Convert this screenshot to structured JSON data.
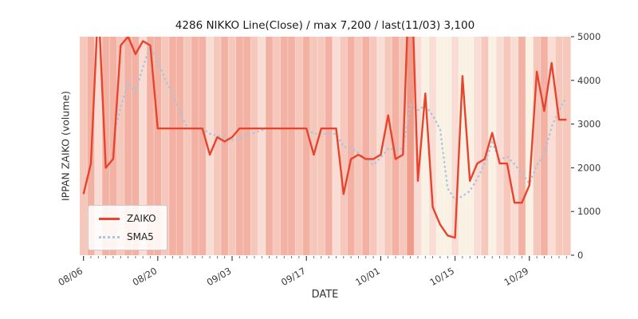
{
  "figure": {
    "title": "4286 NIKKO Line(Close) / max 7,200 / last(11/03) 3,100",
    "xlabel": "DATE",
    "ylabel": "IPPAN ZAIKO (volume)"
  },
  "chart_data": {
    "type": "line",
    "title": "4286 NIKKO Line(Close) / max 7,200 / last(11/03) 3,100",
    "xlabel": "DATE",
    "ylabel": "IPPAN ZAIKO (volume)",
    "ylim": [
      0,
      5000
    ],
    "y_ticks": [
      0,
      1000,
      2000,
      3000,
      4000,
      5000
    ],
    "x_tick_labels": [
      "08/06",
      "08/20",
      "09/03",
      "09/17",
      "10/01",
      "10/15",
      "10/29"
    ],
    "x_tick_positions": [
      0,
      10,
      20,
      30,
      40,
      50,
      60
    ],
    "legend_position": "lower-left",
    "grid": false,
    "series": [
      {
        "name": "ZAIKO",
        "style": "solid",
        "color": "#e8432c",
        "values": [
          1400,
          2100,
          5800,
          2000,
          2200,
          4800,
          5000,
          4600,
          4900,
          4800,
          2900,
          2900,
          2900,
          2900,
          2900,
          2900,
          2900,
          2300,
          2700,
          2600,
          2700,
          2900,
          2900,
          2900,
          2900,
          2900,
          2900,
          2900,
          2900,
          2900,
          2900,
          2300,
          2900,
          2900,
          2900,
          1400,
          2200,
          2300,
          2200,
          2200,
          2300,
          3200,
          2200,
          2300,
          7200,
          1700,
          3700,
          1100,
          700,
          450,
          400,
          4100,
          1700,
          2100,
          2200,
          2800,
          2100,
          2100,
          1200,
          1200,
          1600,
          4200,
          3300,
          4400,
          3100,
          3100
        ]
      },
      {
        "name": "SMA5",
        "style": "dotted",
        "color": "#a9c6dc",
        "derived": "moving_average_of_ZAIKO",
        "window": 5
      }
    ],
    "background_bands": {
      "palette": [
        "#f8f1e4",
        "#f9ddd4",
        "#f5c8bb",
        "#f2b1a2",
        "#ef9c8b"
      ],
      "levels": [
        2,
        3,
        1,
        3,
        3,
        2,
        3,
        3,
        1,
        3,
        3,
        2,
        3,
        3,
        2,
        3,
        3,
        1,
        2,
        3,
        2,
        3,
        3,
        2,
        1,
        3,
        2,
        3,
        3,
        2,
        3,
        2,
        2,
        3,
        1,
        2,
        3,
        2,
        3,
        2,
        1,
        2,
        3,
        2,
        4,
        1,
        0,
        1,
        0,
        0,
        1,
        0,
        0,
        1,
        2,
        0,
        1,
        2,
        1,
        3,
        0,
        2,
        3,
        1,
        2,
        2
      ]
    }
  }
}
